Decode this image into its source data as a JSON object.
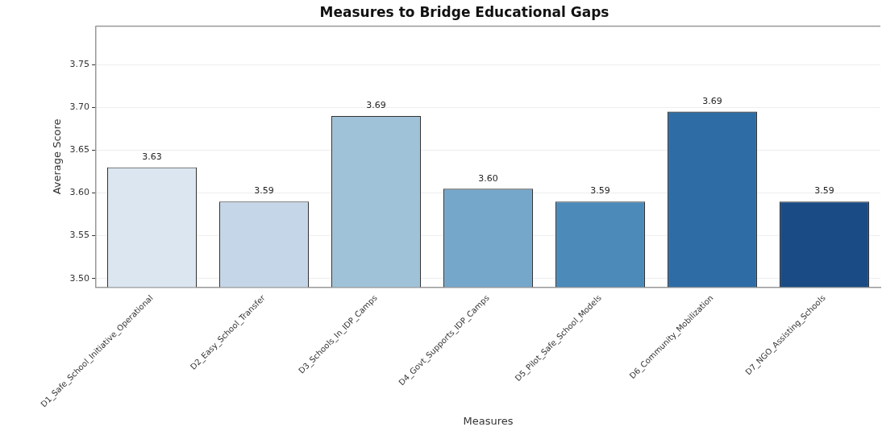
{
  "chart_data": {
    "type": "bar",
    "title": "Measures to Bridge Educational Gaps",
    "xlabel": "Measures",
    "ylabel": "Average Score",
    "categories": [
      "D1_Safe_School_Initiative_Operational",
      "D2_Easy_School_Transfer",
      "D3_Schools_In_IDP_Camps",
      "D4_Govt_Supports_IDP_Camps",
      "D5_Pilot_Safe_School_Models",
      "D6_Community_Mobilization",
      "D7_NGO_Assisting_Schools"
    ],
    "values": [
      3.63,
      3.59,
      3.69,
      3.605,
      3.59,
      3.695,
      3.59
    ],
    "value_labels": [
      "3.63",
      "3.59",
      "3.69",
      "3.60",
      "3.59",
      "3.69",
      "3.59"
    ],
    "colors": [
      "#dce6f0",
      "#c4d6e7",
      "#9fc2d9",
      "#75a7ca",
      "#4b8ab9",
      "#2e6ca5",
      "#1a4b84"
    ],
    "ylim": [
      3.49,
      3.795
    ],
    "yticks": [
      {
        "value": 3.5,
        "label": "3.50"
      },
      {
        "value": 3.55,
        "label": "3.55"
      },
      {
        "value": 3.6,
        "label": "3.60"
      },
      {
        "value": 3.65,
        "label": "3.65"
      },
      {
        "value": 3.7,
        "label": "3.70"
      },
      {
        "value": 3.75,
        "label": "3.75"
      }
    ],
    "grid": "y"
  }
}
